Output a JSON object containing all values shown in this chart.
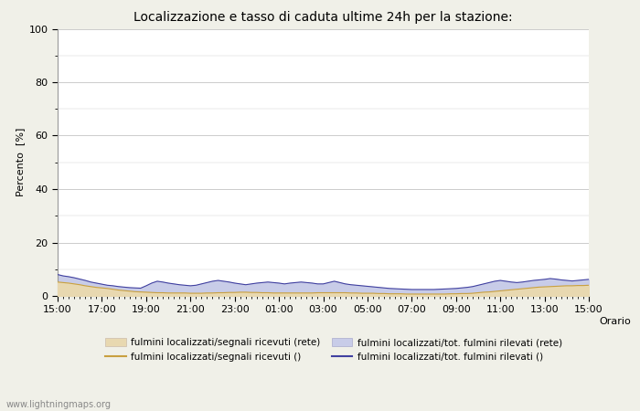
{
  "title": "Localizzazione e tasso di caduta ultime 24h per la stazione:",
  "ylabel": "Percento  [%]",
  "xlabel": "Orario",
  "ylim": [
    0,
    100
  ],
  "yticks": [
    0,
    20,
    40,
    60,
    80,
    100
  ],
  "yticks_minor": [
    10,
    30,
    50,
    70,
    90
  ],
  "x_labels": [
    "15:00",
    "17:00",
    "19:00",
    "21:00",
    "23:00",
    "01:00",
    "03:00",
    "05:00",
    "07:00",
    "09:00",
    "11:00",
    "13:00",
    "15:00"
  ],
  "background_color": "#f0f0e8",
  "plot_bg_color": "#ffffff",
  "grid_color": "#cccccc",
  "fill_color_rete": "#e8d8b0",
  "fill_color_tot": "#c8cce8",
  "line_color_segnali": "#c8a040",
  "line_color_tot": "#4040a0",
  "watermark": "www.lightningmaps.org",
  "legend": [
    "fulmini localizzati/segnali ricevuti (rete)",
    "fulmini localizzati/segnali ricevuti ()",
    "fulmini localizzati/tot. fulmini rilevati (rete)",
    "fulmini localizzati/tot. fulmini rilevati ()"
  ],
  "n_points": 97,
  "fill1_values": [
    5.2,
    5.0,
    4.8,
    4.5,
    4.2,
    3.8,
    3.5,
    3.2,
    3.0,
    2.8,
    2.5,
    2.2,
    2.0,
    1.8,
    1.6,
    1.5,
    1.4,
    1.3,
    1.2,
    1.2,
    1.1,
    1.1,
    1.1,
    1.1,
    1.0,
    1.0,
    1.0,
    1.1,
    1.1,
    1.2,
    1.2,
    1.3,
    1.3,
    1.4,
    1.4,
    1.3,
    1.3,
    1.2,
    1.2,
    1.1,
    1.1,
    1.1,
    1.1,
    1.1,
    1.1,
    1.1,
    1.1,
    1.2,
    1.2,
    1.2,
    1.2,
    1.2,
    1.2,
    1.1,
    1.1,
    1.0,
    1.0,
    1.0,
    0.9,
    0.9,
    0.8,
    0.8,
    0.8,
    0.7,
    0.7,
    0.7,
    0.7,
    0.7,
    0.7,
    0.7,
    0.7,
    0.8,
    0.8,
    0.9,
    0.9,
    1.0,
    1.2,
    1.4,
    1.5,
    1.7,
    1.9,
    2.1,
    2.3,
    2.5,
    2.7,
    2.9,
    3.1,
    3.3,
    3.4,
    3.5,
    3.6,
    3.7,
    3.8,
    3.8,
    3.9,
    3.9,
    4.0
  ],
  "fill2_values": [
    8.0,
    7.5,
    7.2,
    6.8,
    6.3,
    5.8,
    5.2,
    4.8,
    4.4,
    4.0,
    3.8,
    3.5,
    3.3,
    3.1,
    3.0,
    2.9,
    3.8,
    4.8,
    5.5,
    5.2,
    4.8,
    4.5,
    4.2,
    4.0,
    3.8,
    4.0,
    4.5,
    5.0,
    5.5,
    5.8,
    5.5,
    5.2,
    4.8,
    4.5,
    4.2,
    4.5,
    4.8,
    5.0,
    5.2,
    5.0,
    4.8,
    4.5,
    4.8,
    5.0,
    5.2,
    5.0,
    4.8,
    4.5,
    4.5,
    5.0,
    5.5,
    5.0,
    4.5,
    4.2,
    4.0,
    3.8,
    3.6,
    3.4,
    3.2,
    3.0,
    2.8,
    2.7,
    2.6,
    2.5,
    2.4,
    2.4,
    2.4,
    2.4,
    2.4,
    2.5,
    2.6,
    2.7,
    2.8,
    3.0,
    3.2,
    3.5,
    4.0,
    4.5,
    5.0,
    5.5,
    5.8,
    5.5,
    5.2,
    5.0,
    5.2,
    5.5,
    5.8,
    6.0,
    6.2,
    6.5,
    6.3,
    6.0,
    5.8,
    5.6,
    5.8,
    6.0,
    6.2
  ]
}
